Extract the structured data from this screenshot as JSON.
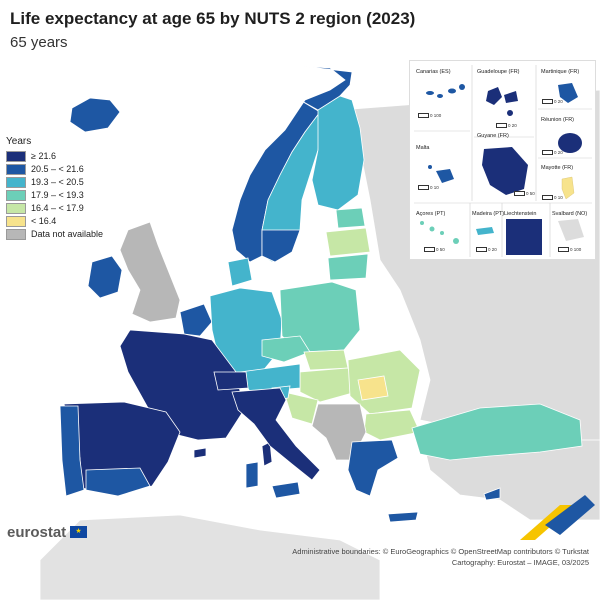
{
  "title": "Life expectancy at age 65 by NUTS 2 region (2023)",
  "subtitle": "65 years",
  "legend": {
    "title": "Years",
    "items": [
      {
        "label": "≥ 21.6",
        "color": "#1b2f79"
      },
      {
        "label": "20.5 – < 21.6",
        "color": "#1e57a3"
      },
      {
        "label": "19.3 – < 20.5",
        "color": "#44b4cc"
      },
      {
        "label": "17.9 – < 19.3",
        "color": "#6ccfb8"
      },
      {
        "label": "16.4 – < 17.9",
        "color": "#c6e7a6"
      },
      {
        "label": "< 16.4",
        "color": "#f7e38c"
      },
      {
        "label": "Data not available",
        "color": "#b7b7b7"
      }
    ]
  },
  "insets": {
    "canarias": {
      "label": "Canarias (ES)",
      "scale": "0   100"
    },
    "guadeloupe": {
      "label": "Guadeloupe (FR)",
      "scale": "0   20"
    },
    "martinique": {
      "label": "Martinique (FR)",
      "scale": "0   20"
    },
    "reunion": {
      "label": "Réunion (FR)",
      "scale": "0   20"
    },
    "guyane": {
      "label": "Guyane (FR)",
      "scale": "0   50"
    },
    "malta": {
      "label": "Malta",
      "scale": "0   10"
    },
    "mayotte": {
      "label": "Mayotte (FR)",
      "scale": "0   10"
    },
    "acores": {
      "label": "Açores (PT)",
      "scale": "0   50"
    },
    "madeira": {
      "label": "Madeira (PT)",
      "scale": "0   20"
    },
    "liechtenstein": {
      "label": "Liechtenstein",
      "scale": "0   5"
    },
    "svalbard": {
      "label": "Svalbard (NO)",
      "scale": "0  100"
    }
  },
  "logo": {
    "text": "eurostat"
  },
  "credits": {
    "line1": "Administrative boundaries: © EuroGeographics © OpenStreetMap contributors © Turkstat",
    "line2": "Cartography: Eurostat – IMAGE, 03/2025"
  }
}
